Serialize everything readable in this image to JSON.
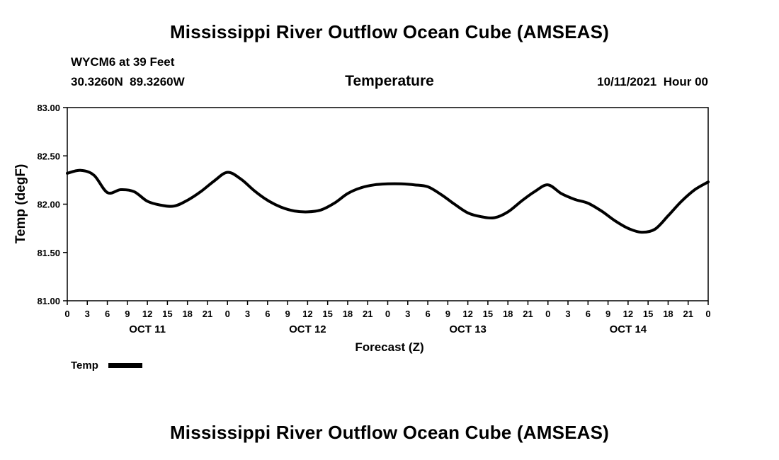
{
  "header": {
    "title": "Mississippi River Outflow Ocean Cube (AMSEAS)",
    "station": "WYCM6 at 39 Feet",
    "coordinates": "30.3260N  89.3260W",
    "variable": "Temperature",
    "datetime": "10/11/2021  Hour 00"
  },
  "legend": {
    "label": "Temp"
  },
  "footer": {
    "title": "Mississippi River Outflow Ocean Cube (AMSEAS)"
  },
  "chart_data": {
    "type": "line",
    "title": "Mississippi River Outflow Ocean Cube (AMSEAS)",
    "subtitle": "Temperature",
    "xlabel": "Forecast (Z)",
    "ylabel": "Temp (degF)",
    "xlim": [
      0,
      96
    ],
    "ylim": [
      81.0,
      83.0
    ],
    "grid": false,
    "legend_position": "bottom-left",
    "line_width": 4,
    "line_color": "#000000",
    "y_tick_values": [
      81.0,
      81.5,
      82.0,
      82.5,
      83.0
    ],
    "y_tick_labels": [
      "81.00",
      "81.50",
      "82.00",
      "82.50",
      "83.00"
    ],
    "x_tick_step_hours": 3,
    "x_tick_labels_cycle": [
      "0",
      "3",
      "6",
      "9",
      "12",
      "15",
      "18",
      "21"
    ],
    "day_labels": [
      {
        "label": "OCT 11",
        "hour": 12
      },
      {
        "label": "OCT 12",
        "hour": 36
      },
      {
        "label": "OCT 13",
        "hour": 60
      },
      {
        "label": "OCT 14",
        "hour": 84
      }
    ],
    "series": [
      {
        "name": "Temp",
        "color": "#000000",
        "x": [
          0,
          2,
          4,
          6,
          8,
          10,
          12,
          14,
          16,
          18,
          20,
          22,
          24,
          26,
          28,
          30,
          32,
          34,
          36,
          38,
          40,
          42,
          44,
          46,
          48,
          50,
          52,
          54,
          56,
          58,
          60,
          62,
          64,
          66,
          68,
          70,
          72,
          74,
          76,
          78,
          80,
          82,
          84,
          86,
          88,
          90,
          92,
          94,
          96
        ],
        "values": [
          82.32,
          82.35,
          82.3,
          82.12,
          82.15,
          82.13,
          82.03,
          81.99,
          81.98,
          82.04,
          82.13,
          82.24,
          82.33,
          82.26,
          82.14,
          82.04,
          81.97,
          81.93,
          81.92,
          81.94,
          82.01,
          82.11,
          82.17,
          82.2,
          82.21,
          82.21,
          82.2,
          82.18,
          82.1,
          82.0,
          81.91,
          81.87,
          81.86,
          81.92,
          82.03,
          82.13,
          82.2,
          82.11,
          82.05,
          82.01,
          81.93,
          81.83,
          81.75,
          81.71,
          81.74,
          81.88,
          82.03,
          82.15,
          82.23
        ]
      }
    ]
  }
}
